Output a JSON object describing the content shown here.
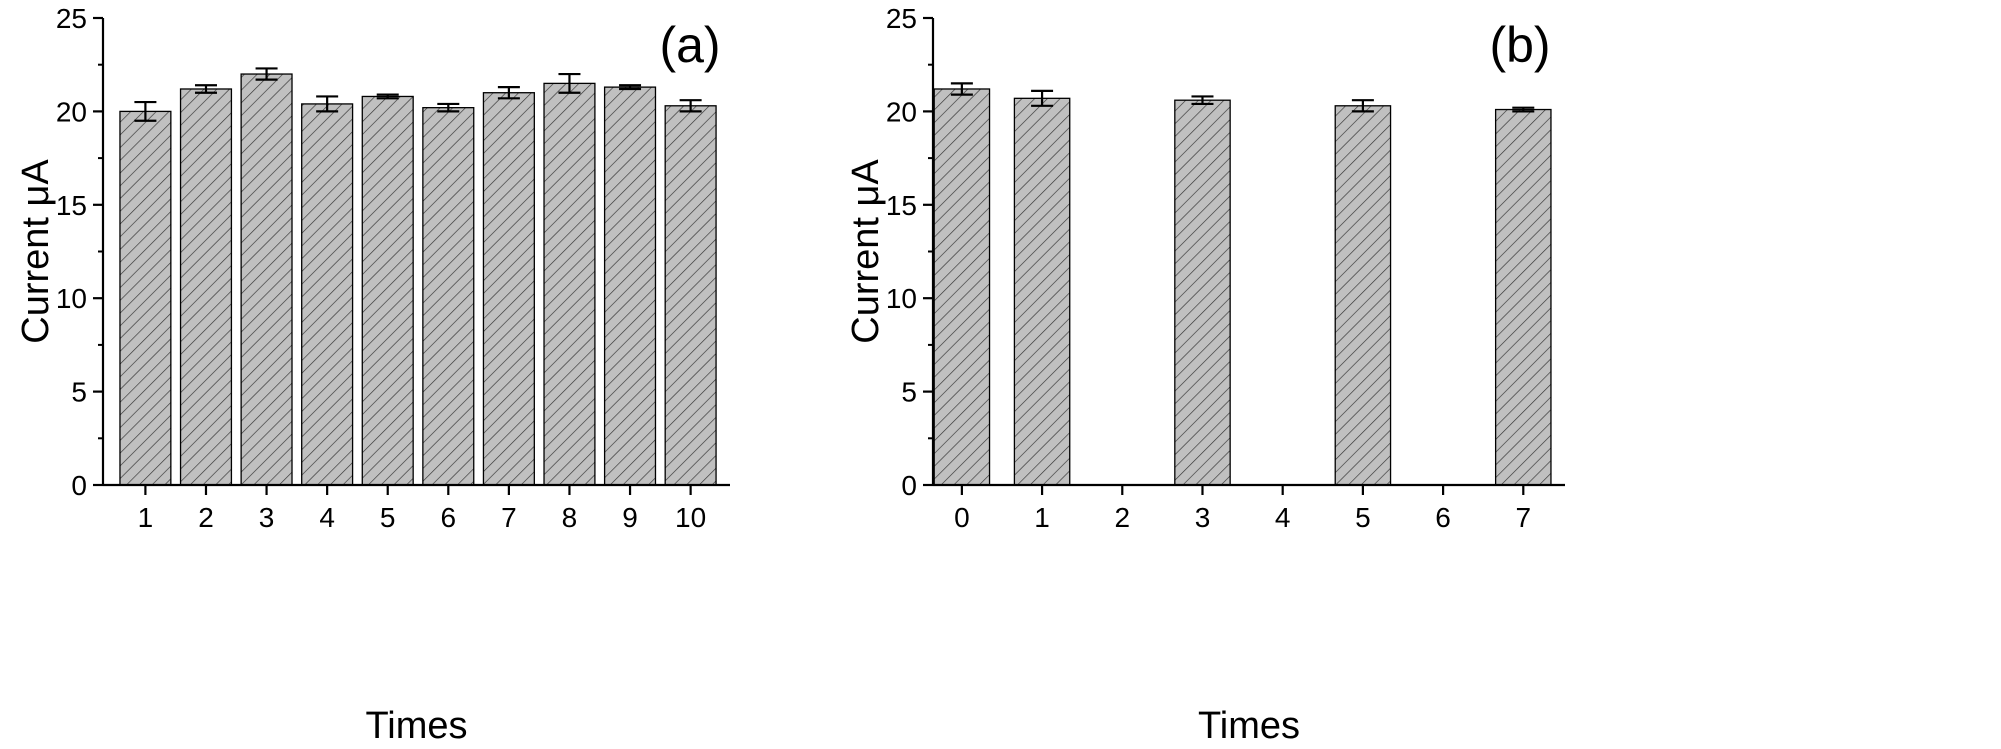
{
  "chart_data": [
    {
      "type": "bar",
      "panel_label": "(a)",
      "title": "",
      "xlabel": "Times",
      "ylabel": "Current μA",
      "categories": [
        "1",
        "2",
        "3",
        "4",
        "5",
        "6",
        "7",
        "8",
        "9",
        "10"
      ],
      "x": [
        1,
        2,
        3,
        4,
        5,
        6,
        7,
        8,
        9,
        10
      ],
      "values": [
        20.0,
        21.2,
        22.0,
        20.4,
        20.8,
        20.2,
        21.0,
        21.5,
        21.3,
        20.3
      ],
      "errors": [
        0.5,
        0.2,
        0.3,
        0.4,
        0.1,
        0.2,
        0.3,
        0.5,
        0.1,
        0.3
      ],
      "xticks": [
        1,
        2,
        3,
        4,
        5,
        6,
        7,
        8,
        9,
        10
      ],
      "xlim": [
        0.3,
        10.65
      ],
      "ylim": [
        0,
        25
      ],
      "yticks": [
        0,
        5,
        10,
        15,
        20,
        25
      ],
      "bar_width": 0.84,
      "grid": false,
      "fill_color": "#c0c0c0",
      "pattern": "diagonal-hatch"
    },
    {
      "type": "bar",
      "panel_label": "(b)",
      "title": "",
      "xlabel": "Times",
      "ylabel": "Current μA",
      "categories": [
        "0",
        "1",
        "3",
        "5",
        "7"
      ],
      "x": [
        0,
        1,
        3,
        5,
        7
      ],
      "values": [
        21.2,
        20.7,
        20.6,
        20.3,
        20.1
      ],
      "errors": [
        0.3,
        0.4,
        0.2,
        0.3,
        0.1
      ],
      "xticks": [
        0,
        1,
        2,
        3,
        4,
        5,
        6,
        7
      ],
      "xlim": [
        -0.36,
        7.52
      ],
      "ylim": [
        0,
        25
      ],
      "yticks": [
        0,
        5,
        10,
        15,
        20,
        25
      ],
      "bar_width": 0.69,
      "grid": false,
      "fill_color": "#c0c0c0",
      "pattern": "diagonal-hatch"
    }
  ]
}
